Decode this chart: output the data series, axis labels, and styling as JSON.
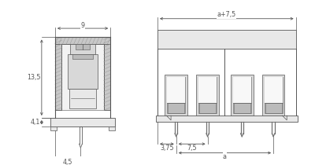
{
  "bg_color": "#ffffff",
  "line_color": "#555555",
  "dim_color": "#555555",
  "gray_wall": "#c8c8c8",
  "gray_inner": "#d8d8d8",
  "gray_light": "#e8e8e8",
  "gray_medium": "#bbbbbb",
  "white_inner": "#f2f2f2",
  "fig_width": 4.0,
  "fig_height": 2.1,
  "dpi": 100,
  "annotations": {
    "dim_9": "9",
    "dim_13_5": "13,5",
    "dim_4_1": "4,1",
    "dim_4_5": "4,5",
    "dim_a_7_5": "a+7,5",
    "dim_3_75": "3,75",
    "dim_7_5": "7,5",
    "dim_a": "a"
  }
}
